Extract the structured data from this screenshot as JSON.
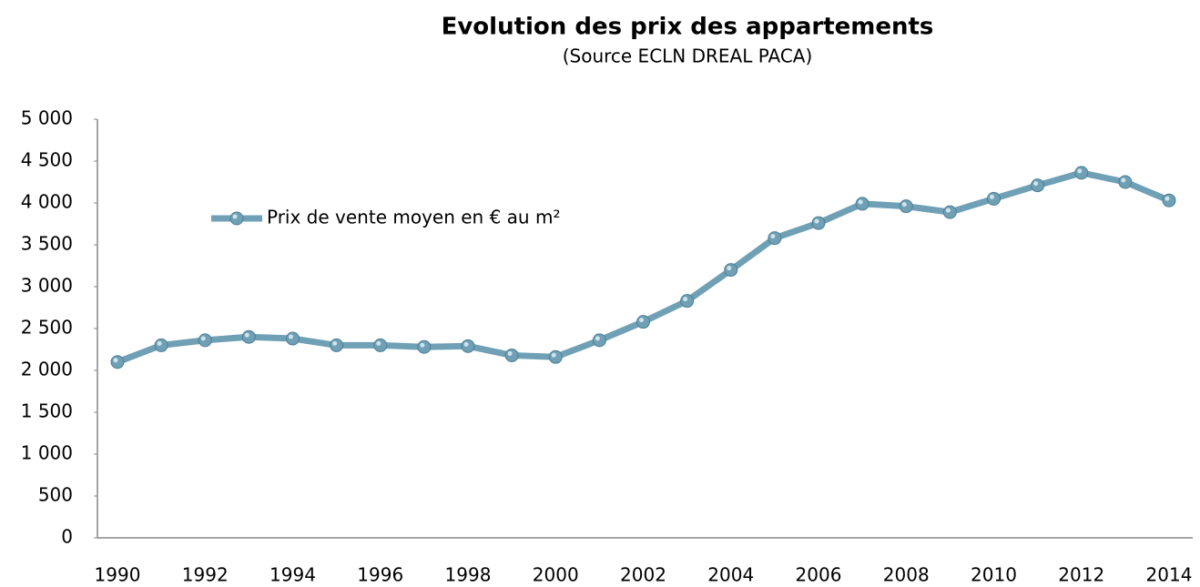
{
  "chart_data": {
    "type": "line",
    "title": "Evolution des prix des appartements",
    "subtitle": "(Source ECLN DREAL PACA)",
    "categories": [
      "1990",
      null,
      "1992",
      null,
      "1994",
      null,
      "1996",
      null,
      "1998",
      null,
      "2000",
      null,
      "2002",
      null,
      "2004",
      null,
      "2006",
      null,
      "2008",
      null,
      "2010",
      null,
      "2012",
      null,
      "2014"
    ],
    "series": [
      {
        "name": "Prix de vente moyen en € au m²",
        "color": "#6fa0b5",
        "values": [
          2100,
          2300,
          2360,
          2400,
          2380,
          2300,
          2300,
          2280,
          2290,
          2180,
          2160,
          2360,
          2580,
          2830,
          3200,
          3580,
          3760,
          3990,
          3960,
          3890,
          4050,
          4210,
          4360,
          4250,
          4030
        ]
      }
    ],
    "ylim": [
      0,
      5000
    ],
    "yticks": [
      0,
      500,
      {
        "value": 1000,
        "label": "1 000"
      },
      {
        "value": 1500,
        "label": "1 500"
      },
      {
        "value": 2000,
        "label": "2 000"
      },
      {
        "value": 2500,
        "label": "2 500"
      },
      {
        "value": 3000,
        "label": "3 000"
      },
      {
        "value": 3500,
        "label": "3 500"
      },
      {
        "value": 4000,
        "label": "4 000"
      },
      {
        "value": 4500,
        "label": "4 500"
      },
      {
        "value": 5000,
        "label": "5 000"
      }
    ],
    "grid": false,
    "legend": "upper left"
  }
}
